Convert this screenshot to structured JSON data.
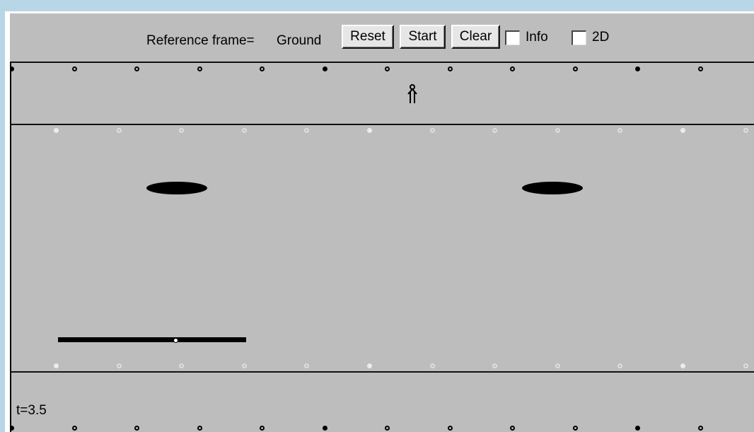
{
  "toolbar": {
    "reference_label": "Reference frame=",
    "reference_value": "Ground",
    "reset_label": "Reset",
    "start_label": "Start",
    "clear_label": "Clear",
    "info_label": "Info",
    "info_checked": false,
    "twod_label": "2D",
    "twod_checked": false
  },
  "status": {
    "time_text": "t=3.5"
  },
  "icons": {
    "observer": "stick-figure-icon"
  },
  "colors": {
    "page_background": "#b8d6e5",
    "panel_background": "#bdbdbd",
    "button_face": "#e6e6e6"
  }
}
